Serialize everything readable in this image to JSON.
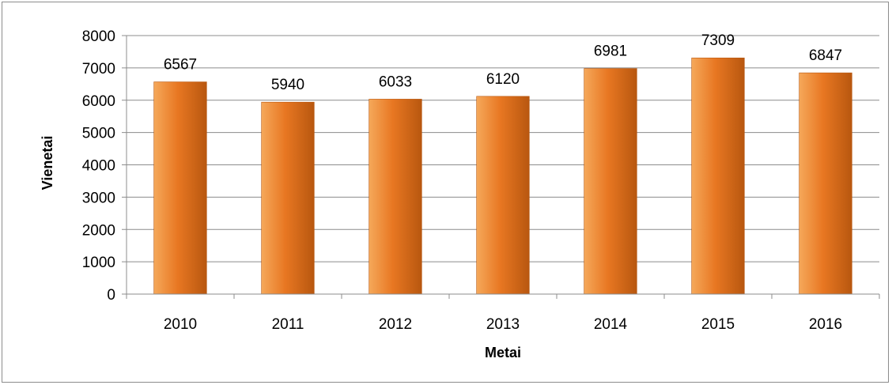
{
  "chart_data": {
    "type": "bar",
    "categories": [
      "2010",
      "2011",
      "2012",
      "2013",
      "2014",
      "2015",
      "2016"
    ],
    "values": [
      6567,
      5940,
      6033,
      6120,
      6981,
      7309,
      6847
    ],
    "data_labels": [
      "6567",
      "5940",
      "6033",
      "6120",
      "6981",
      "7309",
      "6847"
    ],
    "xlabel": "Metai",
    "ylabel": "Vienetai",
    "ylim": [
      0,
      8000
    ],
    "yticks": [
      0,
      1000,
      2000,
      3000,
      4000,
      5000,
      6000,
      7000,
      8000
    ],
    "ytick_labels": [
      "0",
      "1000",
      "2000",
      "3000",
      "4000",
      "5000",
      "6000",
      "7000",
      "8000"
    ],
    "grid": true,
    "legend": "none",
    "colors": {
      "bar_light": "#f5a85a",
      "bar_main": "#e87722",
      "bar_dark": "#b8570f",
      "grid": "#8c8c8c",
      "axis": "#8c8c8c"
    }
  }
}
